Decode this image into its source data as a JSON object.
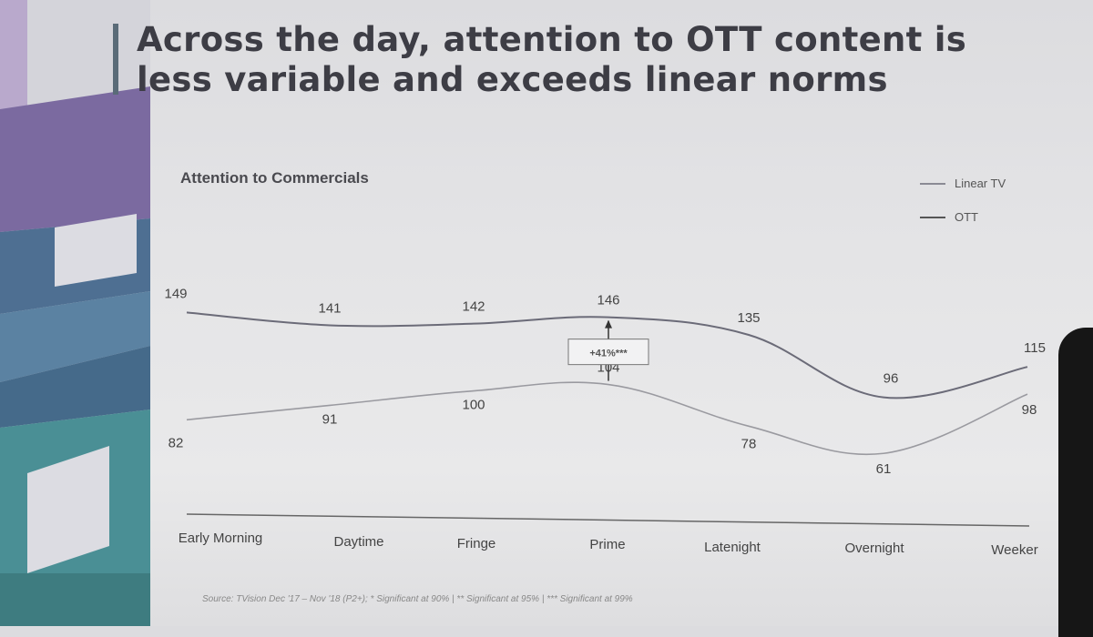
{
  "title": "Across the day, attention to OTT content is\nless variable and exceeds linear norms",
  "source": "Source: TVision Dec '17 – Nov '18 (P2+); * Significant at 90% | ** Significant at 95% | *** Significant at 99%",
  "colors": {
    "linear": "#6b6b78",
    "ott": "#9a9aa0",
    "title_bar": "#5a6b78"
  },
  "chart_data": {
    "type": "line",
    "title": "Attention to Commercials",
    "categories": [
      "Early Morning",
      "Daytime",
      "Fringe",
      "Prime",
      "Latenight",
      "Overnight",
      "Weeker"
    ],
    "series": [
      {
        "name": "Linear TV",
        "values": [
          149,
          141,
          142,
          146,
          135,
          96,
          115
        ]
      },
      {
        "name": "OTT",
        "values": [
          82,
          91,
          100,
          104,
          78,
          61,
          98
        ]
      }
    ],
    "annotation": {
      "category": "Prime",
      "label": "+41%***"
    },
    "legend_position": "top-right",
    "grid": false
  }
}
